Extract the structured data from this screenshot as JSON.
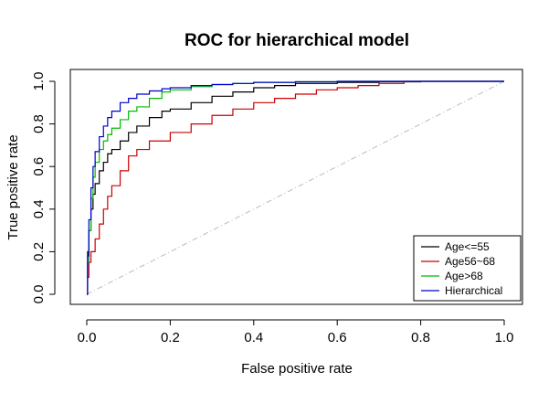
{
  "chart_data": {
    "type": "line",
    "title": "ROC for hierarchical model",
    "xlabel": "False positive rate",
    "ylabel": "True positive rate",
    "xlim": [
      0,
      1
    ],
    "ylim": [
      0,
      1
    ],
    "xticks": [
      "0.0",
      "0.2",
      "0.4",
      "0.6",
      "0.8",
      "1.0"
    ],
    "yticks": [
      "0.0",
      "0.2",
      "0.4",
      "0.6",
      "0.8",
      "1.0"
    ],
    "xtick_values": [
      0,
      0.2,
      0.4,
      0.6,
      0.8,
      1.0
    ],
    "ytick_values": [
      0,
      0.2,
      0.4,
      0.6,
      0.8,
      1.0
    ],
    "grid": false,
    "legend_position": "bottom-right",
    "reference_line": {
      "x": [
        0,
        1
      ],
      "y": [
        0,
        1
      ],
      "color": "#bbbbbb",
      "style": "dash-dot"
    },
    "series": [
      {
        "name": "Age<=55",
        "color": "#000000",
        "x": [
          0,
          0.002,
          0.005,
          0.01,
          0.015,
          0.02,
          0.03,
          0.04,
          0.05,
          0.06,
          0.08,
          0.1,
          0.12,
          0.15,
          0.18,
          0.2,
          0.25,
          0.3,
          0.35,
          0.4,
          0.45,
          0.5,
          0.6,
          0.7,
          0.8,
          0.9,
          1.0
        ],
        "y": [
          0,
          0.2,
          0.3,
          0.4,
          0.47,
          0.52,
          0.58,
          0.62,
          0.66,
          0.68,
          0.72,
          0.76,
          0.79,
          0.83,
          0.86,
          0.87,
          0.9,
          0.93,
          0.95,
          0.97,
          0.98,
          0.99,
          0.995,
          0.998,
          1.0,
          1.0,
          1.0
        ]
      },
      {
        "name": "Age56~68",
        "color": "#cc0000",
        "x": [
          0,
          0.002,
          0.005,
          0.01,
          0.02,
          0.03,
          0.04,
          0.05,
          0.06,
          0.08,
          0.1,
          0.12,
          0.15,
          0.2,
          0.25,
          0.3,
          0.35,
          0.4,
          0.45,
          0.5,
          0.55,
          0.6,
          0.65,
          0.7,
          0.76,
          0.8,
          0.9,
          1.0
        ],
        "y": [
          0,
          0.08,
          0.15,
          0.2,
          0.26,
          0.33,
          0.4,
          0.46,
          0.51,
          0.58,
          0.65,
          0.68,
          0.72,
          0.76,
          0.8,
          0.84,
          0.87,
          0.9,
          0.92,
          0.94,
          0.96,
          0.97,
          0.98,
          0.99,
          1.0,
          1.0,
          1.0,
          1.0
        ]
      },
      {
        "name": "Age>68",
        "color": "#00bb00",
        "x": [
          0,
          0.002,
          0.005,
          0.01,
          0.015,
          0.02,
          0.03,
          0.04,
          0.05,
          0.06,
          0.08,
          0.1,
          0.12,
          0.15,
          0.18,
          0.2,
          0.25,
          0.3,
          0.35,
          0.4,
          0.5,
          0.6,
          0.7,
          0.8,
          1.0
        ],
        "y": [
          0,
          0.15,
          0.3,
          0.45,
          0.55,
          0.62,
          0.68,
          0.72,
          0.75,
          0.78,
          0.82,
          0.86,
          0.88,
          0.92,
          0.95,
          0.96,
          0.975,
          0.985,
          0.99,
          0.995,
          0.998,
          1.0,
          1.0,
          1.0,
          1.0
        ]
      },
      {
        "name": "Hierarchical",
        "color": "#0000cc",
        "x": [
          0,
          0.002,
          0.005,
          0.01,
          0.015,
          0.02,
          0.03,
          0.04,
          0.05,
          0.06,
          0.08,
          0.1,
          0.12,
          0.15,
          0.18,
          0.2,
          0.25,
          0.3,
          0.35,
          0.4,
          0.5,
          0.6,
          0.8,
          1.0
        ],
        "y": [
          0,
          0.18,
          0.35,
          0.5,
          0.6,
          0.67,
          0.74,
          0.79,
          0.83,
          0.86,
          0.9,
          0.92,
          0.94,
          0.955,
          0.965,
          0.97,
          0.98,
          0.985,
          0.99,
          0.995,
          0.998,
          1.0,
          1.0,
          1.0
        ]
      }
    ]
  }
}
